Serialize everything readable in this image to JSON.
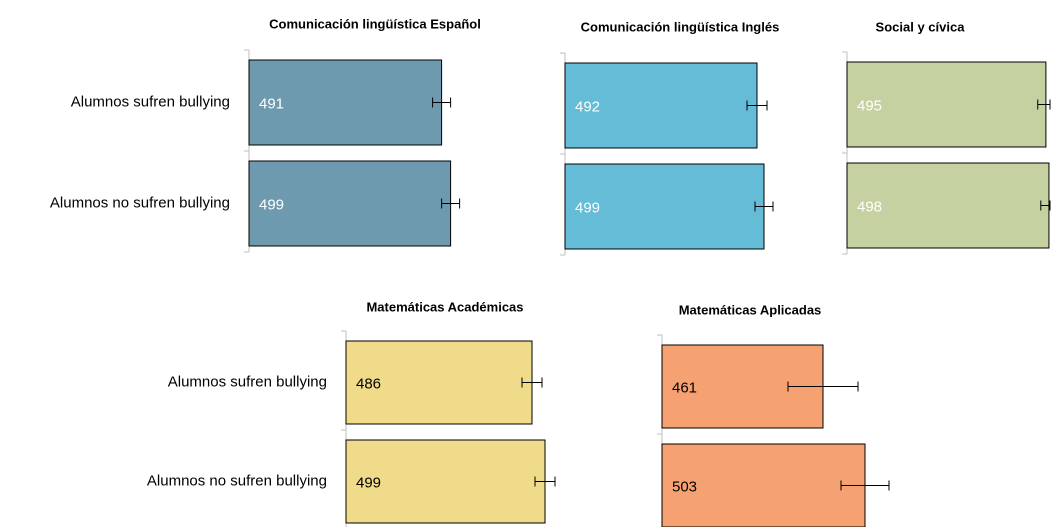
{
  "chart_data": [
    {
      "type": "bar",
      "orientation": "horizontal",
      "title": "Comunicación lingüística Español",
      "categories": [
        "Alumnos sufren bullying",
        "Alumnos no sufren bullying"
      ],
      "values": [
        491,
        499
      ],
      "errors": [
        8,
        8
      ],
      "color": "#6e9aaf",
      "label_color": "#ffffff",
      "xlim": [
        320,
        510
      ]
    },
    {
      "type": "bar",
      "orientation": "horizontal",
      "title": "Comunicación lingüística Inglés",
      "categories": [
        null,
        null
      ],
      "values": [
        492,
        499
      ],
      "errors": [
        10,
        9
      ],
      "color": "#65bcd6",
      "label_color": "#ffffff",
      "xlim": [
        300,
        510
      ]
    },
    {
      "type": "bar",
      "orientation": "horizontal",
      "title": "Social y cívica",
      "categories": [
        null,
        null
      ],
      "values": [
        495,
        498
      ],
      "errors": [
        8,
        8
      ],
      "color": "#c5d1a0",
      "label_color": "#ffffff",
      "xlim": [
        300,
        500
      ]
    },
    {
      "type": "bar",
      "orientation": "horizontal",
      "title": "Matemáticas Académicas",
      "categories": [
        "Alumnos sufren bullying",
        "Alumnos no sufren bullying"
      ],
      "values": [
        486,
        499
      ],
      "errors": [
        10,
        10
      ],
      "color": "#f0db8a",
      "label_color": "#000000",
      "xlim": [
        300,
        510
      ]
    },
    {
      "type": "bar",
      "orientation": "horizontal",
      "title": "Matemáticas Aplicadas",
      "categories": [
        null,
        null
      ],
      "values": [
        461,
        503
      ],
      "errors": [
        35,
        24
      ],
      "color": "#f5a172",
      "label_color": "#000000",
      "xlim": [
        300,
        510
      ]
    }
  ]
}
